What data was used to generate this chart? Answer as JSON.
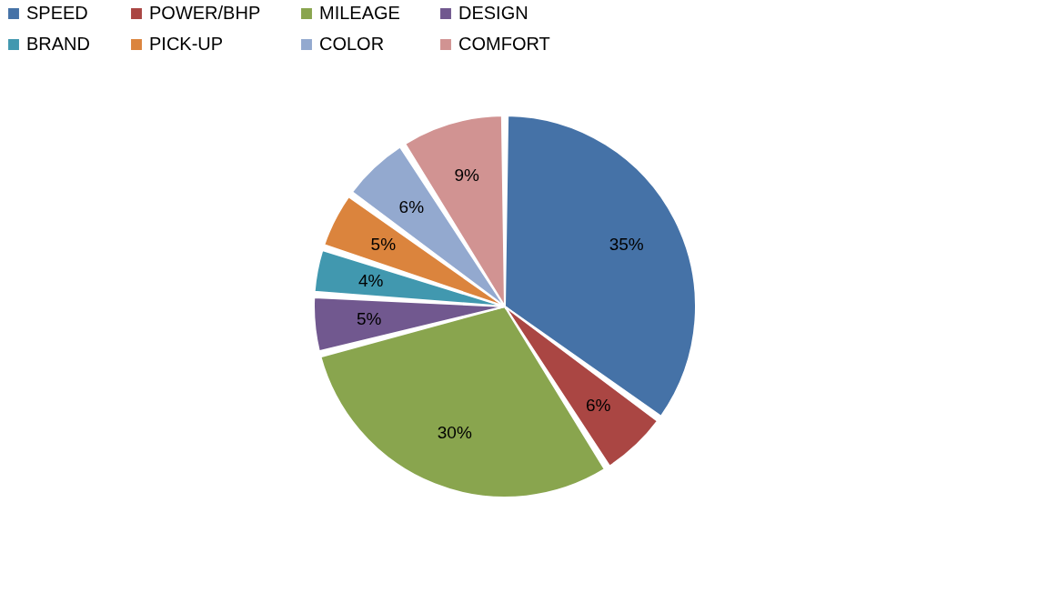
{
  "chart_data": {
    "type": "pie",
    "categories": [
      "SPEED",
      "POWER/BHP",
      "MILEAGE",
      "DESIGN",
      "BRAND",
      "PICK-UP",
      "COLOR",
      "COMFORT"
    ],
    "values": [
      35,
      6,
      30,
      5,
      4,
      5,
      6,
      9
    ],
    "colors": [
      "#4572a7",
      "#aa4643",
      "#89a54e",
      "#71588f",
      "#4198af",
      "#db843d",
      "#93a9cf",
      "#d19392"
    ],
    "value_labels": [
      "35%",
      "6%",
      "30%",
      "5%",
      "4%",
      "5%",
      "6%",
      "9%"
    ],
    "legend": "top"
  }
}
